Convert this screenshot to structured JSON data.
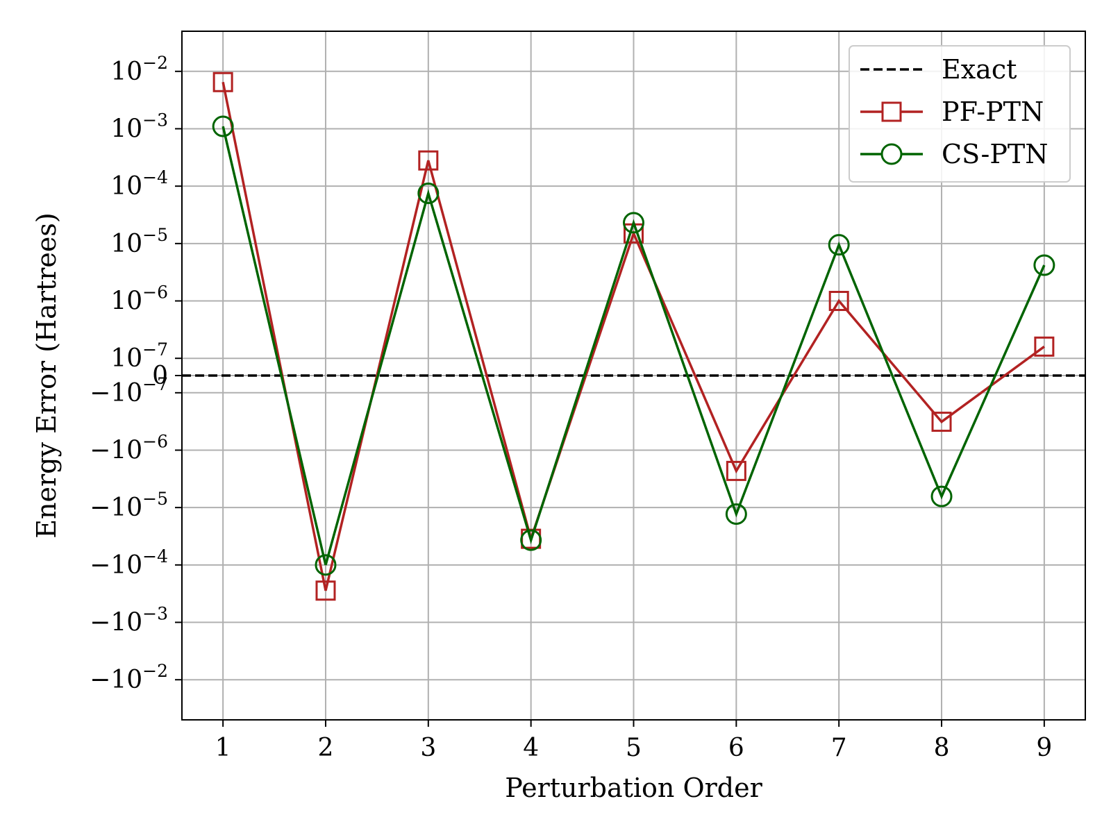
{
  "chart_data": {
    "type": "line",
    "xlabel": "Perturbation Order",
    "ylabel": "Energy Error (Hartrees)",
    "yscale": "symlog",
    "y_linthresh": 1e-07,
    "ylim": [
      -0.05,
      0.05
    ],
    "xlim": [
      0.6,
      9.4
    ],
    "x_ticks": [
      1,
      2,
      3,
      4,
      5,
      6,
      7,
      8,
      9
    ],
    "y_ticks": [
      {
        "value": 0.01,
        "base": "10",
        "exp": "−2"
      },
      {
        "value": 0.001,
        "base": "10",
        "exp": "−3"
      },
      {
        "value": 0.0001,
        "base": "10",
        "exp": "−4"
      },
      {
        "value": 1e-05,
        "base": "10",
        "exp": "−5"
      },
      {
        "value": 1e-06,
        "base": "10",
        "exp": "−6"
      },
      {
        "value": 1e-07,
        "base": "10",
        "exp": "−7"
      },
      {
        "value": 0,
        "base": "0",
        "exp": ""
      },
      {
        "value": -1e-07,
        "base": "−10",
        "exp": "−7"
      },
      {
        "value": -1e-06,
        "base": "−10",
        "exp": "−6"
      },
      {
        "value": -1e-05,
        "base": "−10",
        "exp": "−5"
      },
      {
        "value": -0.0001,
        "base": "−10",
        "exp": "−4"
      },
      {
        "value": -0.001,
        "base": "−10",
        "exp": "−3"
      },
      {
        "value": -0.01,
        "base": "−10",
        "exp": "−2"
      }
    ],
    "grid": true,
    "legend_position": "top-right",
    "x": [
      1,
      2,
      3,
      4,
      5,
      6,
      7,
      8,
      9
    ],
    "series": [
      {
        "name": "Exact",
        "style": "dashed",
        "color": "#000000",
        "marker": "none",
        "values": [
          0,
          0,
          0,
          0,
          0,
          0,
          0,
          0,
          0
        ]
      },
      {
        "name": "PF-PTN",
        "style": "solid",
        "color": "#b22222",
        "marker": "square",
        "values": [
          0.0065,
          -0.00028,
          0.00028,
          -3.5e-05,
          1.5e-05,
          -2.3e-06,
          1e-06,
          -3.2e-07,
          1.6e-07
        ]
      },
      {
        "name": "CS-PTN",
        "style": "solid",
        "color": "#006400",
        "marker": "circle",
        "values": [
          0.0011,
          -0.0001,
          7.5e-05,
          -3.7e-05,
          2.3e-05,
          -1.3e-05,
          9.5e-06,
          -6.4e-06,
          4.2e-06
        ]
      }
    ]
  }
}
